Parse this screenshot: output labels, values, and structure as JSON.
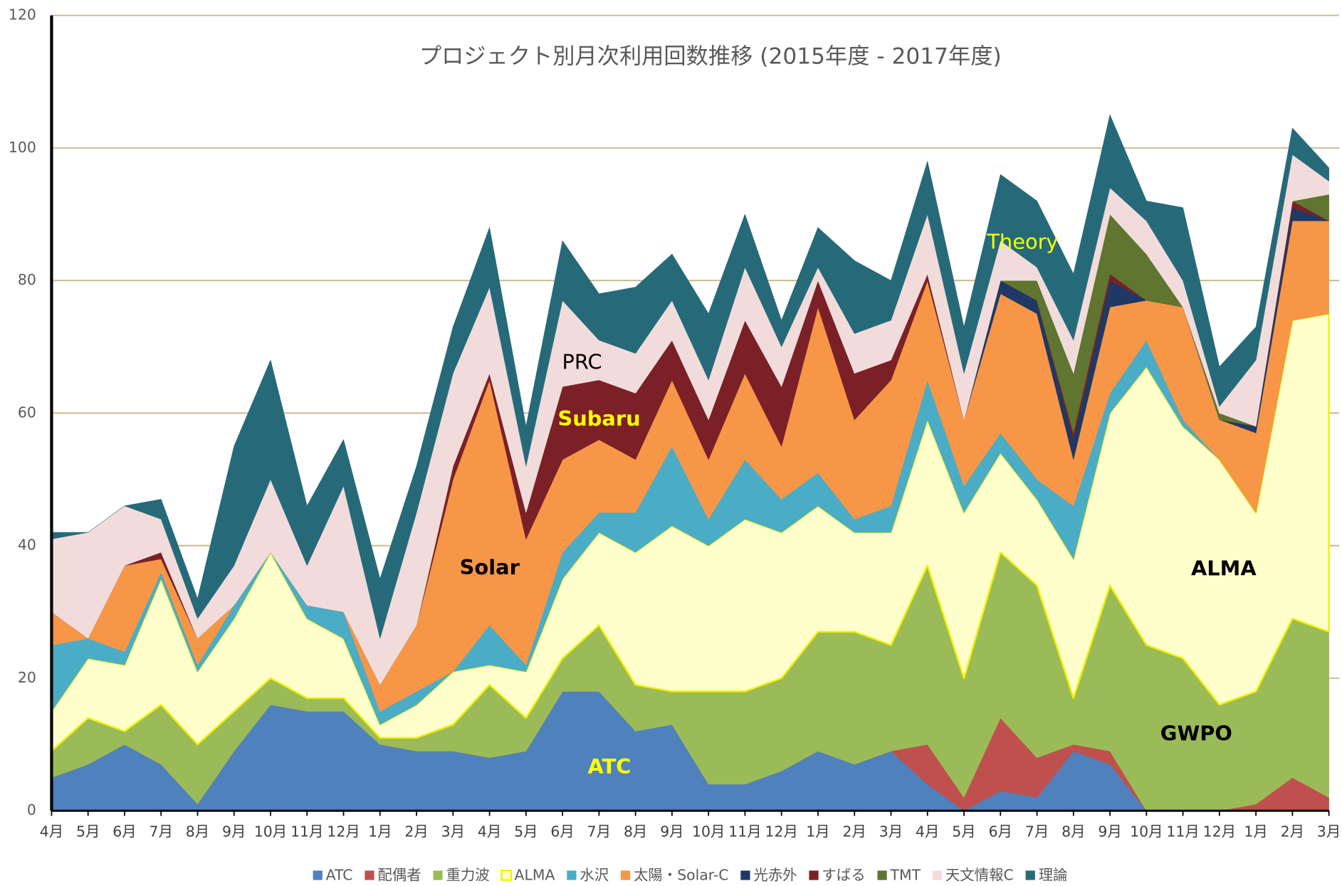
{
  "chart_data": {
    "type": "stacked_area",
    "title": "プロジェクト別月次利用回数推移 (2015年度 - 2017年度)",
    "categories": [
      "4月",
      "5月",
      "6月",
      "7月",
      "8月",
      "9月",
      "10月",
      "11月",
      "12月",
      "1月",
      "2月",
      "3月",
      "4月",
      "5月",
      "6月",
      "7月",
      "8月",
      "9月",
      "10月",
      "11月",
      "12月",
      "1月",
      "2月",
      "3月",
      "4月",
      "5月",
      "6月",
      "7月",
      "8月",
      "9月",
      "10月",
      "11月",
      "12月",
      "1月",
      "2月",
      "3月"
    ],
    "ylim": [
      0,
      120
    ],
    "yticks": [
      0,
      20,
      40,
      60,
      80,
      100,
      120
    ],
    "grid": true,
    "legend": "bottom",
    "annotations": [
      "PRC",
      "Subaru",
      "Solar",
      "Theory",
      "ALMA",
      "GWPO",
      "ATC"
    ],
    "series": [
      {
        "name": "ATC",
        "color": "#4f81bd",
        "values": [
          5,
          7,
          10,
          7,
          1,
          9,
          16,
          15,
          15,
          10,
          9,
          9,
          8,
          9,
          18,
          18,
          12,
          13,
          4,
          4,
          6,
          9,
          7,
          9,
          4,
          0,
          3,
          2,
          9,
          7,
          0,
          0,
          0,
          0,
          0,
          0
        ]
      },
      {
        "name": "配偶者",
        "color": "#c0504d",
        "values": [
          0,
          0,
          0,
          0,
          0,
          0,
          0,
          0,
          0,
          0,
          0,
          0,
          0,
          0,
          0,
          0,
          0,
          0,
          0,
          0,
          0,
          0,
          0,
          0,
          6,
          2,
          11,
          6,
          1,
          2,
          0,
          0,
          0,
          1,
          5,
          2
        ]
      },
      {
        "name": "重力波",
        "color": "#9bbb59",
        "values": [
          4,
          7,
          2,
          9,
          9,
          6,
          4,
          2,
          2,
          1,
          2,
          4,
          11,
          5,
          5,
          10,
          7,
          5,
          14,
          14,
          14,
          18,
          20,
          16,
          27,
          18,
          25,
          26,
          7,
          25,
          25,
          23,
          16,
          17,
          24,
          25
        ]
      },
      {
        "name": "ALMA",
        "color": "#ffffcc",
        "values": [
          6,
          9,
          10,
          19,
          11,
          14,
          19,
          12,
          9,
          2,
          5,
          8,
          3,
          7,
          12,
          14,
          20,
          25,
          22,
          26,
          22,
          19,
          15,
          17,
          22,
          25,
          15,
          13,
          21,
          26,
          42,
          35,
          37,
          27,
          45,
          48
        ]
      },
      {
        "name": "水沢",
        "color": "#4bacc6",
        "values": [
          10,
          3,
          2,
          1,
          1,
          2,
          0,
          2,
          4,
          2,
          2,
          0,
          6,
          1,
          4,
          3,
          6,
          12,
          4,
          9,
          5,
          5,
          2,
          4,
          6,
          4,
          3,
          3,
          8,
          3,
          4,
          1,
          0,
          0,
          0,
          0
        ]
      },
      {
        "name": "太陽・Solar-C",
        "color": "#f79646",
        "values": [
          5,
          0,
          13,
          2,
          4,
          0,
          0,
          0,
          0,
          4,
          10,
          29,
          37,
          19,
          14,
          11,
          8,
          10,
          9,
          13,
          8,
          25,
          15,
          19,
          15,
          10,
          21,
          25,
          7,
          13,
          6,
          17,
          6,
          12,
          15,
          14
        ]
      },
      {
        "name": "光赤外",
        "color": "#1f3864",
        "values": [
          0,
          0,
          0,
          0,
          0,
          0,
          0,
          0,
          0,
          0,
          0,
          0,
          0,
          0,
          0,
          0,
          0,
          0,
          0,
          0,
          0,
          0,
          0,
          0,
          0,
          0,
          2,
          2,
          3,
          4,
          0,
          0,
          0,
          1,
          2,
          0
        ]
      },
      {
        "name": "すばる",
        "color": "#7b2027",
        "values": [
          0,
          0,
          0,
          1,
          0,
          0,
          0,
          0,
          0,
          0,
          0,
          2,
          1,
          4,
          11,
          9,
          10,
          6,
          6,
          8,
          9,
          4,
          7,
          3,
          1,
          0,
          0,
          0,
          1,
          1,
          0,
          0,
          0,
          0,
          1,
          0
        ]
      },
      {
        "name": "TMT",
        "color": "#5f7530",
        "values": [
          0,
          0,
          0,
          0,
          0,
          0,
          0,
          0,
          0,
          0,
          0,
          0,
          0,
          0,
          0,
          0,
          0,
          0,
          0,
          0,
          0,
          0,
          0,
          0,
          0,
          0,
          0,
          3,
          9,
          9,
          7,
          0,
          1,
          0,
          0,
          4
        ]
      },
      {
        "name": "天文情報C",
        "color": "#f2dcdb",
        "values": [
          11,
          16,
          9,
          5,
          3,
          6,
          11,
          6,
          19,
          7,
          17,
          14,
          13,
          7,
          13,
          6,
          6,
          6,
          6,
          8,
          6,
          2,
          6,
          6,
          9,
          7,
          6,
          2,
          5,
          4,
          5,
          4,
          1,
          10,
          7,
          2
        ]
      },
      {
        "name": "理論",
        "color": "#266a7a",
        "values": [
          1,
          0,
          0,
          3,
          3,
          18,
          18,
          9,
          7,
          9,
          7,
          7,
          9,
          6,
          9,
          7,
          10,
          7,
          10,
          8,
          4,
          6,
          11,
          6,
          8,
          7,
          10,
          10,
          10,
          11,
          3,
          11,
          6,
          5,
          4,
          2
        ]
      }
    ]
  }
}
